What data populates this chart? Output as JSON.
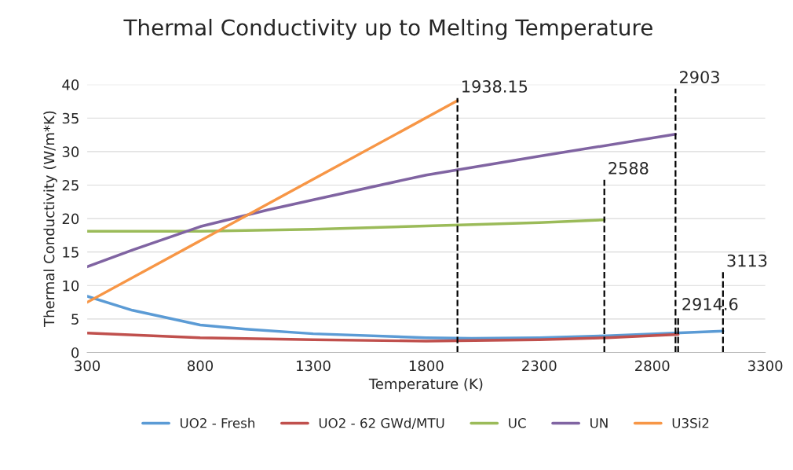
{
  "chart_data": {
    "type": "line",
    "title": "Thermal Conductivity up to Melting Temperature",
    "xlabel": "Temperature (K)",
    "ylabel": "Thermal Conductivity (W/m*K)",
    "series": [
      {
        "name": "UO2 - Fresh",
        "color": "#5b9bd5",
        "x": [
          300,
          500,
          800,
          1000,
          1300,
          1800,
          2000,
          2300,
          2600,
          2900,
          3113
        ],
        "values": [
          8.4,
          6.3,
          4.1,
          3.5,
          2.8,
          2.2,
          2.1,
          2.2,
          2.5,
          2.9,
          3.2
        ]
      },
      {
        "name": "UO2 - 62 GWd/MTU",
        "color": "#c0504d",
        "x": [
          300,
          800,
          1300,
          1800,
          2300,
          2600,
          2914.6
        ],
        "values": [
          2.9,
          2.2,
          1.9,
          1.7,
          1.9,
          2.2,
          2.7
        ]
      },
      {
        "name": "UC",
        "color": "#9bbb59",
        "x": [
          300,
          800,
          1300,
          1800,
          2300,
          2588
        ],
        "values": [
          18.1,
          18.1,
          18.4,
          18.9,
          19.4,
          19.8
        ]
      },
      {
        "name": "UN",
        "color": "#8064a2",
        "x": [
          300,
          500,
          800,
          1100,
          1300,
          1800,
          2300,
          2903
        ],
        "values": [
          12.8,
          15.3,
          18.8,
          21.3,
          22.8,
          26.5,
          29.3,
          32.6
        ]
      },
      {
        "name": "U3Si2",
        "color": "#f79646",
        "x": [
          300,
          1938.15
        ],
        "values": [
          7.5,
          37.6
        ]
      },
      {
        "color": "#000000",
        "line_style": "dashed",
        "x": [
          1938.15,
          1938.15
        ],
        "values": [
          0,
          38
        ]
      },
      {
        "color": "#000000",
        "line_style": "dashed",
        "x": [
          2588,
          2588
        ],
        "values": [
          0,
          25.8
        ]
      },
      {
        "color": "#000000",
        "line_style": "dashed",
        "x": [
          2903,
          2903
        ],
        "values": [
          0,
          39.4
        ]
      },
      {
        "color": "#000000",
        "line_style": "dashed",
        "x": [
          2914.6,
          2914.6
        ],
        "values": [
          0,
          5.5
        ]
      },
      {
        "color": "#000000",
        "line_style": "dashed",
        "x": [
          3113,
          3113
        ],
        "values": [
          0,
          12
        ]
      }
    ],
    "annotations": [
      {
        "text": "1938.15",
        "x": 1938.15,
        "y": 38
      },
      {
        "text": "2588",
        "x": 2588,
        "y": 25.8
      },
      {
        "text": "2903",
        "x": 2903,
        "y": 39.4
      },
      {
        "text": "2914.6",
        "x": 2914.6,
        "y": 5.5
      },
      {
        "text": "3113",
        "x": 3113,
        "y": 12
      }
    ],
    "xlim": [
      300,
      3300
    ],
    "xticks": [
      300,
      800,
      1300,
      1800,
      2300,
      2800,
      3300
    ],
    "ylim": [
      0,
      40
    ],
    "yticks": [
      0,
      5,
      10,
      15,
      20,
      25,
      30,
      35,
      40
    ],
    "grid": "y",
    "legend": "bottom",
    "marker": "none",
    "line_style": "solid"
  }
}
